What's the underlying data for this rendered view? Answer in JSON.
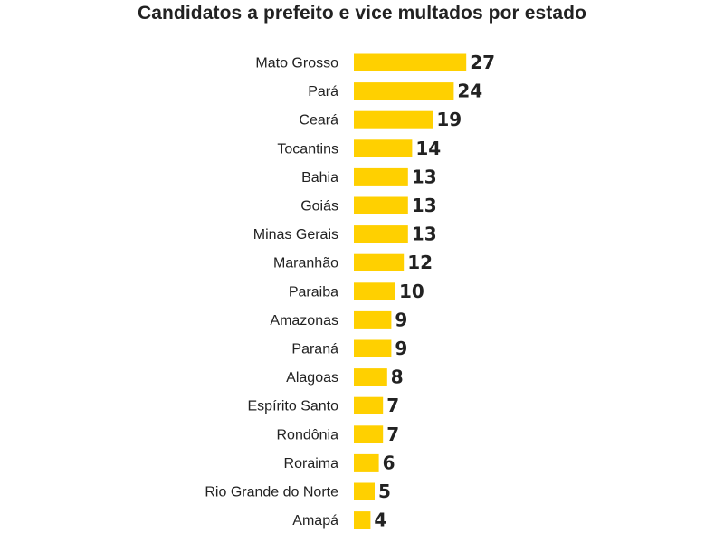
{
  "chart_data": {
    "type": "bar",
    "orientation": "horizontal",
    "title": "Candidatos a prefeito e vice multados por estado",
    "xlabel": "",
    "ylabel": "",
    "grid": false,
    "legend": "none",
    "bar_color": "#FFD000",
    "text_color": "#222222",
    "categories": [
      "Mato Grosso",
      "Pará",
      "Ceará",
      "Tocantins",
      "Bahia",
      "Goiás",
      "Minas Gerais",
      "Maranhão",
      "Paraiba",
      "Amazonas",
      "Paraná",
      "Alagoas",
      "Espírito Santo",
      "Rondônia",
      "Roraima",
      "Rio Grande do Norte",
      "Amapá"
    ],
    "values": [
      27,
      24,
      19,
      14,
      13,
      13,
      13,
      12,
      10,
      9,
      9,
      8,
      7,
      7,
      6,
      5,
      4
    ]
  }
}
